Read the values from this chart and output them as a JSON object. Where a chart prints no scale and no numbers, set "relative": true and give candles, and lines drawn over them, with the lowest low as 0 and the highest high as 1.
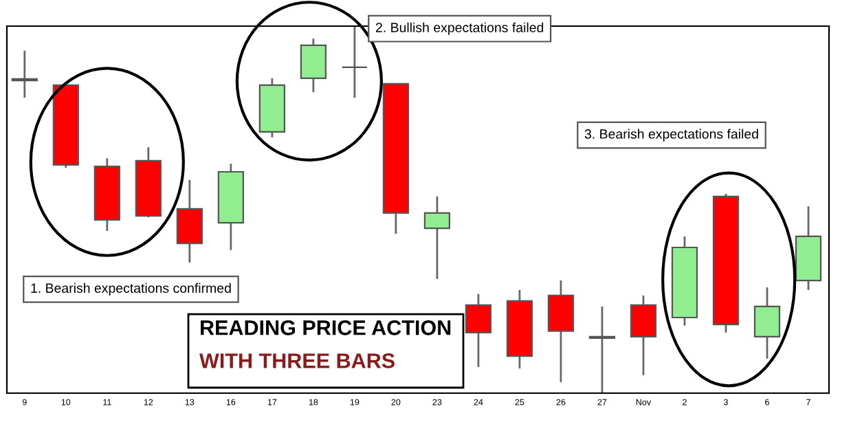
{
  "chart_data": {
    "type": "candlestick",
    "relative": true,
    "title": "READING PRICE ACTION",
    "subtitle": "WITH THREE BARS",
    "categories": [
      "9",
      "10",
      "11",
      "12",
      "13",
      "16",
      "17",
      "18",
      "19",
      "20",
      "23",
      "24",
      "25",
      "26",
      "27",
      "Nov",
      "2",
      "3",
      "6",
      "7"
    ],
    "ohlc": [
      [
        0.852,
        0.933,
        0.805,
        0.856
      ],
      [
        0.839,
        0.843,
        0.614,
        0.622
      ],
      [
        0.618,
        0.64,
        0.442,
        0.472
      ],
      [
        0.633,
        0.67,
        0.479,
        0.483
      ],
      [
        0.502,
        0.581,
        0.356,
        0.408
      ],
      [
        0.464,
        0.625,
        0.39,
        0.603
      ],
      [
        0.712,
        0.858,
        0.697,
        0.839
      ],
      [
        0.858,
        0.966,
        0.82,
        0.948
      ],
      [
        0.888,
        1.0,
        0.805,
        0.888
      ],
      [
        0.843,
        0.843,
        0.434,
        0.491
      ],
      [
        0.449,
        0.536,
        0.311,
        0.491
      ],
      [
        0.24,
        0.27,
        0.071,
        0.165
      ],
      [
        0.251,
        0.281,
        0.067,
        0.101
      ],
      [
        0.266,
        0.307,
        0.03,
        0.169
      ],
      [
        0.15,
        0.236,
        0.0,
        0.154
      ],
      [
        0.24,
        0.266,
        0.049,
        0.154
      ],
      [
        0.206,
        0.427,
        0.184,
        0.397
      ],
      [
        0.536,
        0.543,
        0.165,
        0.187
      ],
      [
        0.154,
        0.288,
        0.094,
        0.236
      ],
      [
        0.307,
        0.509,
        0.281,
        0.427
      ]
    ],
    "colors": [
      "#7fbf7f",
      "#ff0000",
      "#ff0000",
      "#ff0000",
      "#ff0000",
      "#90ee90",
      "#90ee90",
      "#90ee90",
      "#555555",
      "#ff0000",
      "#90ee90",
      "#ff0000",
      "#ff0000",
      "#ff0000",
      "#7fbf7f",
      "#ff0000",
      "#90ee90",
      "#ff0000",
      "#90ee90",
      "#90ee90"
    ],
    "annotations": [
      "1. Bearish expectations confirmed",
      "2. Bullish expectations failed",
      "3. Bearish expectations failed"
    ],
    "grid": false,
    "legend": false
  }
}
